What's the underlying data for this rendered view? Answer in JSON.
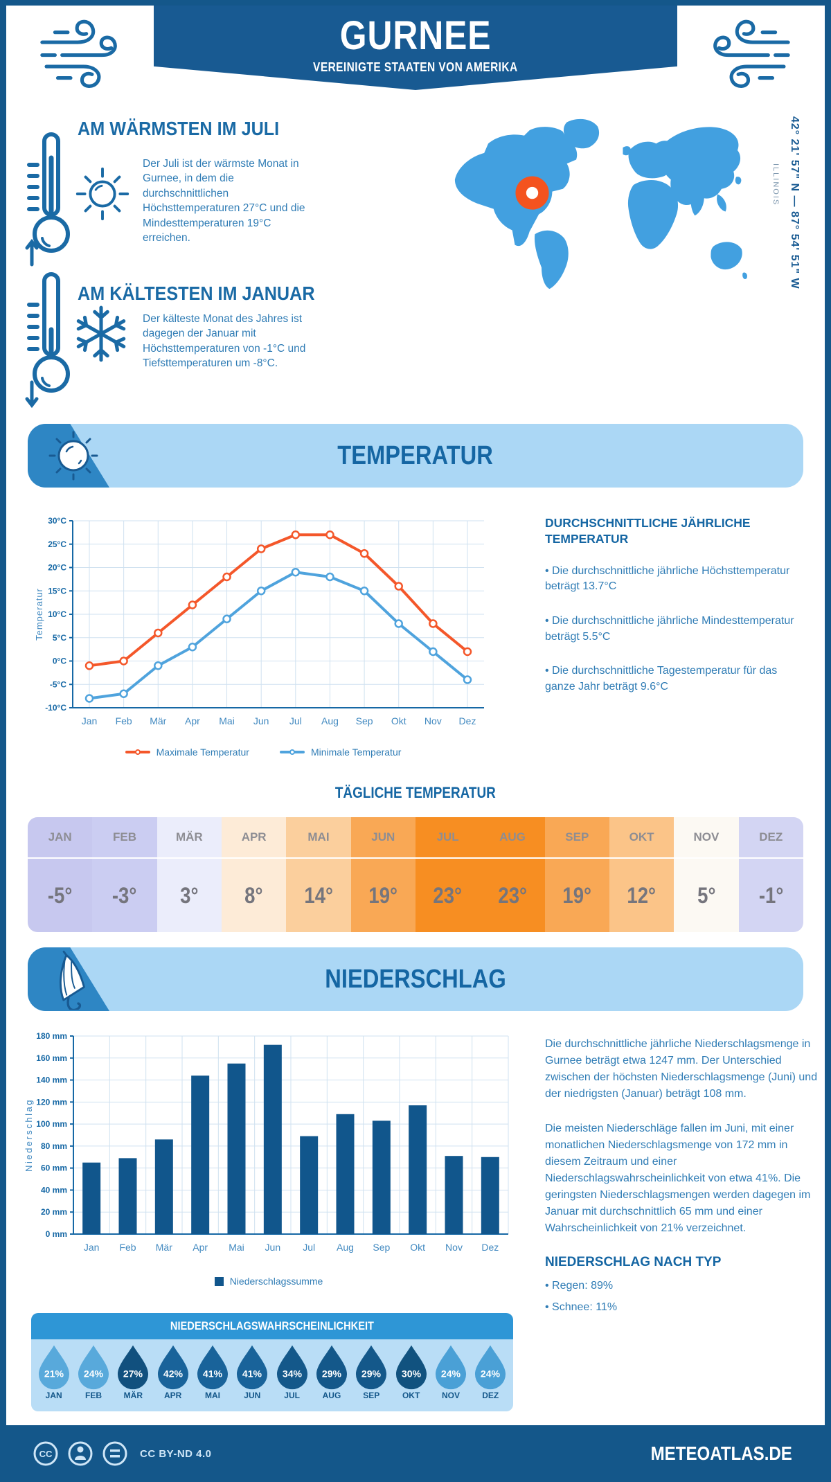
{
  "header": {
    "title": "GURNEE",
    "subtitle": "VEREINIGTE STAATEN VON AMERIKA"
  },
  "location": {
    "coordinates": "42° 21' 57\" N — 87° 54' 51\" W",
    "region": "ILLINOIS"
  },
  "warmest": {
    "title": "AM WÄRMSTEN IM JULI",
    "text": "Der Juli ist der wärmste Monat in Gurnee, in dem die durchschnittlichen Höchsttemperaturen 27°C und die Mindesttemperaturen 19°C erreichen."
  },
  "coldest": {
    "title": "AM KÄLTESTEN IM JANUAR",
    "text": "Der kälteste Monat des Jahres ist dagegen der Januar mit Höchsttemperaturen von -1°C und Tiefsttemperaturen um -8°C."
  },
  "temperature_section": {
    "banner": "TEMPERATUR",
    "annual": {
      "heading": "DURCHSCHNITTLICHE JÄHRLICHE TEMPERATUR",
      "bullets": [
        "• Die durchschnittliche jährliche Höchsttemperatur beträgt 13.7°C",
        "• Die durchschnittliche jährliche Mindesttemperatur beträgt 5.5°C",
        "• Die durchschnittliche Tagestemperatur für das ganze Jahr beträgt 9.6°C"
      ]
    },
    "daily": {
      "heading": "TÄGLICHE TEMPERATUR",
      "months": [
        "JAN",
        "FEB",
        "MÄR",
        "APR",
        "MAI",
        "JUN",
        "JUL",
        "AUG",
        "SEP",
        "OKT",
        "NOV",
        "DEZ"
      ],
      "values": [
        "-5°",
        "-3°",
        "3°",
        "8°",
        "14°",
        "19°",
        "23°",
        "23°",
        "19°",
        "12°",
        "5°",
        "-1°"
      ],
      "colors": [
        "#c7c8ef",
        "#cbcdf2",
        "#ebedfb",
        "#fdebd7",
        "#fbcf9d",
        "#f9a855",
        "#f78e22",
        "#f78e22",
        "#f9a855",
        "#fbc488",
        "#fcf9f3",
        "#d3d5f3"
      ]
    }
  },
  "precipitation_section": {
    "banner": "NIEDERSCHLAG",
    "paragraphs": [
      "Die durchschnittliche jährliche Niederschlagsmenge in Gurnee beträgt etwa 1247 mm. Der Unterschied zwischen der höchsten Niederschlagsmenge (Juni) und der niedrigsten (Januar) beträgt 108 mm.",
      "Die meisten Niederschläge fallen im Juni, mit einer monatlichen Niederschlagsmenge von 172 mm in diesem Zeitraum und einer Niederschlagswahrscheinlichkeit von etwa 41%. Die geringsten Niederschlagsmengen werden dagegen im Januar mit durchschnittlich 65 mm und einer Wahrscheinlichkeit von 21% verzeichnet."
    ],
    "by_type": {
      "heading": "NIEDERSCHLAG NACH TYP",
      "bullets": [
        "• Regen: 89%",
        "• Schnee: 11%"
      ]
    },
    "probability": {
      "heading": "NIEDERSCHLAGSWAHRSCHEINLICHKEIT",
      "months": [
        "JAN",
        "FEB",
        "MÄR",
        "APR",
        "MAI",
        "JUN",
        "JUL",
        "AUG",
        "SEP",
        "OKT",
        "NOV",
        "DEZ"
      ],
      "values": [
        "21%",
        "24%",
        "27%",
        "42%",
        "41%",
        "41%",
        "34%",
        "29%",
        "29%",
        "30%",
        "24%",
        "24%"
      ],
      "colors": [
        "#58a9db",
        "#58a9db",
        "#11507e",
        "#19639a",
        "#19639a",
        "#19639a",
        "#14588a",
        "#14588a",
        "#14588a",
        "#11527f",
        "#4aa0d6",
        "#4aa0d6"
      ]
    }
  },
  "chart_data": [
    {
      "type": "line",
      "title": "Temperatur Jahresverlauf",
      "categories": [
        "Jan",
        "Feb",
        "Mär",
        "Apr",
        "Mai",
        "Jun",
        "Jul",
        "Aug",
        "Sep",
        "Okt",
        "Nov",
        "Dez"
      ],
      "series": [
        {
          "name": "Maximale Temperatur",
          "color": "#f4572a",
          "values": [
            -1,
            0,
            6,
            12,
            18,
            24,
            27,
            27,
            23,
            16,
            8,
            2
          ]
        },
        {
          "name": "Minimale Temperatur",
          "color": "#4fa3dd",
          "values": [
            -8,
            -7,
            -1,
            3,
            9,
            15,
            19,
            18,
            15,
            8,
            2,
            -4
          ]
        }
      ],
      "xlabel": "",
      "ylabel": "Temperatur",
      "ylim": [
        -10,
        30
      ],
      "ytick_step": 5,
      "ytick_suffix": "°C",
      "grid": true,
      "legend_position": "bottom"
    },
    {
      "type": "bar",
      "title": "Niederschlagssumme pro Monat",
      "categories": [
        "Jan",
        "Feb",
        "Mär",
        "Apr",
        "Mai",
        "Jun",
        "Jul",
        "Aug",
        "Sep",
        "Okt",
        "Nov",
        "Dez"
      ],
      "series": [
        {
          "name": "Niederschlagssumme",
          "color": "#11568c",
          "values": [
            65,
            69,
            86,
            144,
            155,
            172,
            89,
            109,
            103,
            117,
            71,
            70
          ]
        }
      ],
      "xlabel": "",
      "ylabel": "Niederschlag",
      "ylim": [
        0,
        180
      ],
      "ytick_step": 20,
      "ytick_suffix": " mm",
      "grid": true,
      "legend_position": "bottom"
    }
  ],
  "footer": {
    "license": "CC BY-ND 4.0",
    "site": "METEOATLAS.DE"
  }
}
